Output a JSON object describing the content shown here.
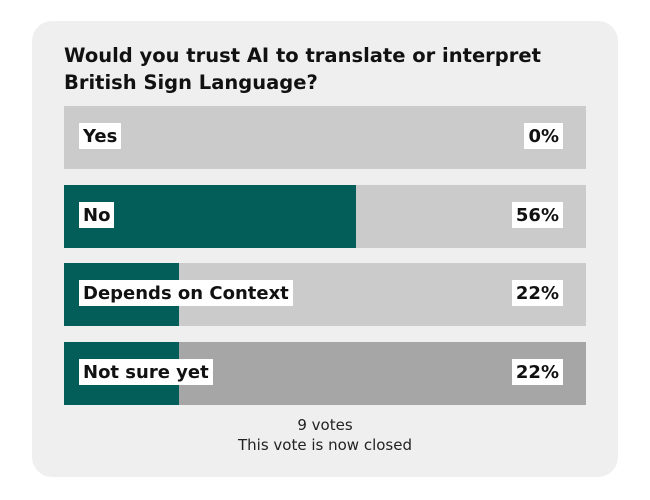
{
  "poll": {
    "question": "Would you trust AI to translate or interpret British Sign Language?",
    "options": [
      {
        "label": "Yes",
        "percent_label": "0%",
        "percent": 0,
        "selected": false
      },
      {
        "label": "No",
        "percent_label": "56%",
        "percent": 56,
        "selected": false
      },
      {
        "label": "Depends on Context",
        "percent_label": "22%",
        "percent": 22,
        "selected": false
      },
      {
        "label": "Not sure yet",
        "percent_label": "22%",
        "percent": 22,
        "selected": true
      }
    ],
    "votes": "9 votes",
    "status": "This vote is now closed"
  },
  "colors": {
    "fill": "#035e5a",
    "track": "#cbcbcb",
    "track_selected": "#a6a6a6",
    "card_background": "#efefef"
  }
}
